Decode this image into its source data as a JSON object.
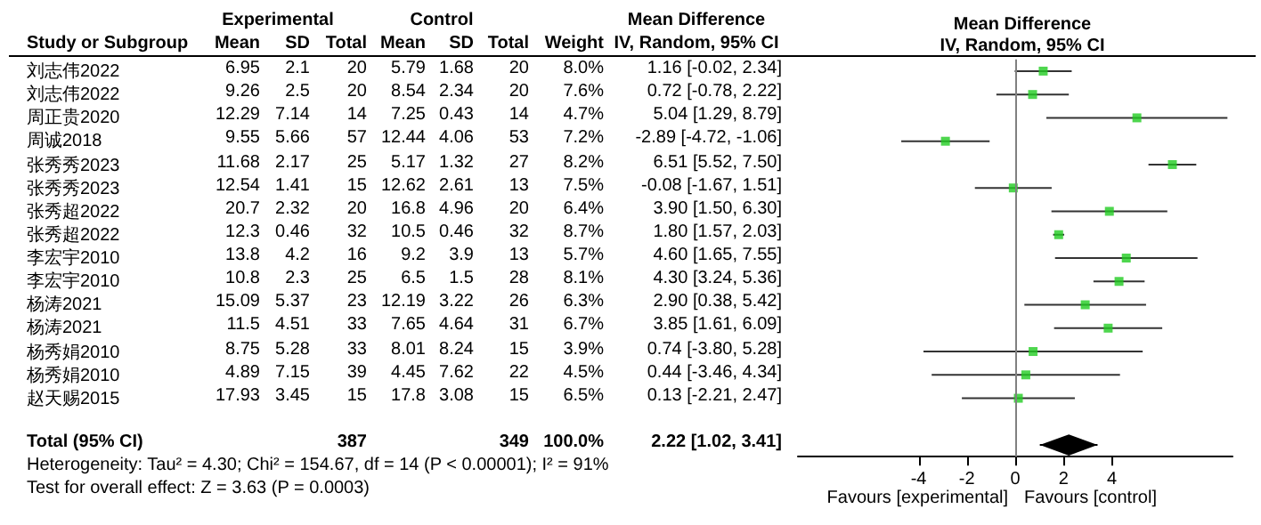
{
  "chart_data": [
    {
      "type": "other",
      "ylabel": "Study or Subgroup",
      "data_labels": true,
      "annotations": [
        "Experimental",
        "Control",
        "Heterogeneity: Tau² = 4.30; Chi² = 154.67, df = 14 (P < 0.00001); I² = 91%",
        "Test for overall effect: Z = 3.63 (P = 0.0003)"
      ],
      "categories": [
        "刘志伟2022",
        "刘志伟2022",
        "周正贵2020",
        "周诚2018",
        "张秀秀2023",
        "张秀秀2023",
        "张秀超2022",
        "张秀超2022",
        "李宏宇2010",
        "李宏宇2010",
        "杨涛2021",
        "杨涛2021",
        "杨秀娟2010",
        "杨秀娟2010",
        "赵天赐2015",
        null,
        "Total (95% CI)"
      ],
      "series": [
        {
          "name": "Mean",
          "values": [
            6.95,
            9.26,
            12.29,
            9.55,
            11.68,
            12.54,
            20.7,
            12.3,
            13.8,
            10.8,
            15.09,
            11.5,
            8.75,
            4.89,
            17.93,
            null,
            null
          ]
        },
        {
          "name": "SD",
          "values": [
            2.1,
            2.5,
            7.14,
            5.66,
            2.17,
            1.41,
            2.32,
            0.46,
            4.2,
            2.3,
            5.37,
            4.51,
            5.28,
            7.15,
            3.45,
            null,
            null
          ]
        },
        {
          "name": "Total",
          "values": [
            20,
            20,
            14,
            57,
            25,
            15,
            20,
            32,
            16,
            25,
            23,
            33,
            33,
            39,
            15,
            null,
            387
          ]
        },
        {
          "name": "Mean",
          "values": [
            5.79,
            8.54,
            7.25,
            12.44,
            5.17,
            12.62,
            16.8,
            10.5,
            9.2,
            6.5,
            12.19,
            7.65,
            8.01,
            4.45,
            17.8,
            null,
            null
          ]
        },
        {
          "name": "SD",
          "values": [
            1.68,
            2.34,
            0.43,
            4.06,
            1.32,
            2.61,
            4.96,
            0.46,
            3.9,
            1.5,
            3.22,
            4.64,
            8.24,
            7.62,
            3.08,
            null,
            null
          ]
        },
        {
          "name": "Total",
          "values": [
            20,
            20,
            14,
            53,
            27,
            13,
            20,
            32,
            13,
            28,
            26,
            31,
            15,
            22,
            15,
            null,
            349
          ]
        },
        {
          "name": "Weight",
          "values": [
            8.0,
            7.6,
            4.7,
            7.2,
            8.2,
            7.5,
            6.4,
            8.7,
            5.7,
            8.1,
            6.3,
            6.7,
            3.9,
            4.5,
            6.5,
            null,
            100.0
          ],
          "value_labels": [
            "8.0%",
            "7.6%",
            "4.7%",
            "7.2%",
            "8.2%",
            "7.5%",
            "6.4%",
            "8.7%",
            "5.7%",
            "8.1%",
            "6.3%",
            "6.7%",
            "3.9%",
            "4.5%",
            "6.5%",
            null,
            "100.0%"
          ]
        },
        {
          "name": "Mean Difference\nIV, Random, 95% CI",
          "values": [
            1.16,
            0.72,
            5.04,
            -2.89,
            6.51,
            -0.08,
            3.9,
            1.8,
            4.6,
            4.3,
            2.9,
            3.85,
            0.74,
            0.44,
            0.13,
            null,
            2.22
          ],
          "value_labels": [
            "1.16 [-0.02, 2.34]",
            "0.72 [-0.78, 2.22]",
            "5.04 [1.29, 8.79]",
            "-2.89 [-4.72, -1.06]",
            "6.51 [5.52, 7.50]",
            "-0.08 [-1.67, 1.51]",
            "3.90 [1.50, 6.30]",
            "1.80 [1.57, 2.03]",
            "4.60 [1.65, 7.55]",
            "4.30 [3.24, 5.36]",
            "2.90 [0.38, 5.42]",
            "3.85 [1.61, 6.09]",
            "0.74 [-3.80, 5.28]",
            "0.44 [-3.46, 4.34]",
            "0.13 [-2.21, 2.47]",
            null,
            "2.22 [1.02, 3.41]"
          ]
        }
      ]
    },
    {
      "type": "scatter",
      "orientation": "horizontal",
      "title": "Mean Difference",
      "subtitle": "IV, Random, 95% CI",
      "marker": "square",
      "grid": false,
      "tick_labels": "x",
      "categories": [
        null,
        null,
        null,
        null,
        null,
        null,
        null,
        null,
        null,
        null,
        null,
        null,
        null,
        null,
        null,
        null,
        null
      ],
      "xlim": [
        -9,
        9
      ],
      "xticks": [
        -4,
        -2,
        0,
        2,
        4
      ],
      "ref_lines": [
        {
          "axis": "x",
          "value": 0,
          "color": "#808080"
        }
      ],
      "annotations": [
        "Favours [experimental]",
        "Favours [control]"
      ],
      "series": [
        {
          "color": "#22cc22",
          "values": [
            1.16,
            0.72,
            5.04,
            -2.89,
            6.51,
            -0.08,
            3.9,
            1.8,
            4.6,
            4.3,
            2.9,
            3.85,
            0.74,
            0.44,
            0.13,
            null,
            null
          ],
          "errors": [
            [
              -0.02,
              2.34
            ],
            [
              -0.78,
              2.22
            ],
            [
              1.29,
              8.79
            ],
            [
              -4.72,
              -1.06
            ],
            [
              5.52,
              7.5
            ],
            [
              -1.67,
              1.51
            ],
            [
              1.5,
              6.3
            ],
            [
              1.57,
              2.03
            ],
            [
              1.65,
              7.55
            ],
            [
              3.24,
              5.36
            ],
            [
              0.38,
              5.42
            ],
            [
              1.61,
              6.09
            ],
            [
              -3.8,
              5.28
            ],
            [
              -3.46,
              4.34
            ],
            [
              -2.21,
              2.47
            ],
            null,
            null
          ]
        },
        {
          "color": "#000000",
          "marker": "diamond",
          "values": [
            null,
            null,
            null,
            null,
            null,
            null,
            null,
            null,
            null,
            null,
            null,
            null,
            null,
            null,
            null,
            null,
            2.22
          ],
          "errors": [
            null,
            null,
            null,
            null,
            null,
            null,
            null,
            null,
            null,
            null,
            null,
            null,
            null,
            null,
            null,
            null,
            [
              1.02,
              3.41
            ]
          ]
        }
      ]
    }
  ]
}
